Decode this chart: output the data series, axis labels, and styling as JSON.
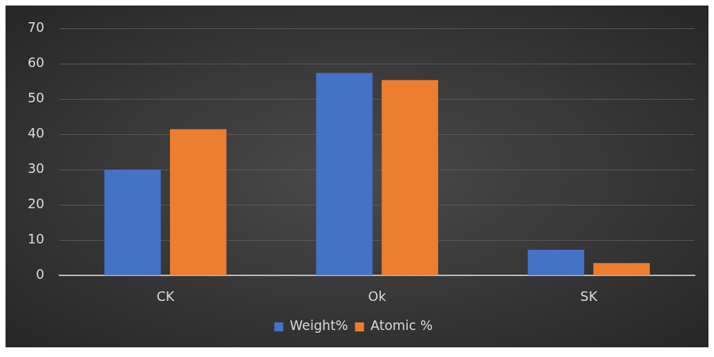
{
  "chart_data": {
    "type": "bar",
    "categories": [
      "CK",
      "Ok",
      "SK"
    ],
    "series": [
      {
        "name": "Weight%",
        "color": "#4472c4",
        "values": [
          30,
          57.4,
          7.3
        ]
      },
      {
        "name": "Atomic %",
        "color": "#ed7d31",
        "values": [
          41.5,
          55.4,
          3.5
        ]
      }
    ],
    "ylim": [
      0,
      70
    ],
    "yticks": [
      0,
      10,
      20,
      30,
      40,
      50,
      60,
      70
    ],
    "grid": "y",
    "legend": "bottom"
  }
}
